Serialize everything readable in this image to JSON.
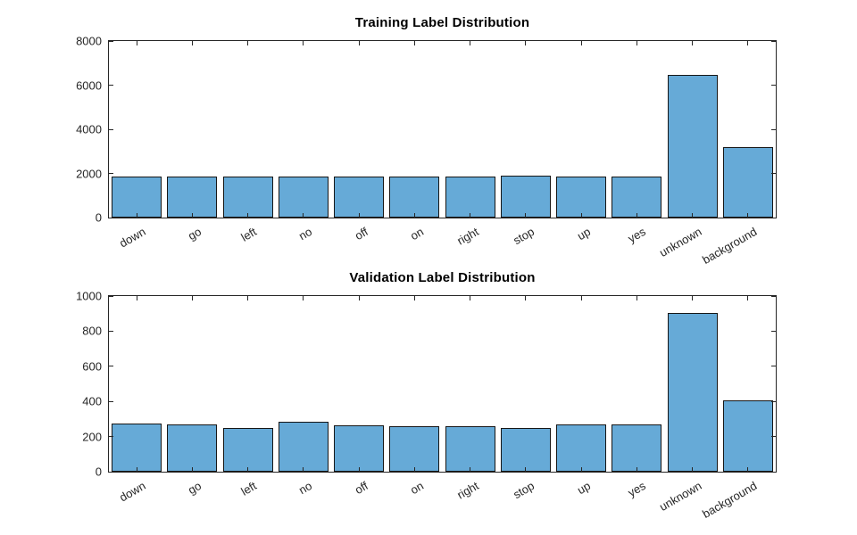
{
  "figure": {
    "background_color": "#ffffff",
    "axis_color": "#262626",
    "tick_label_color": "#262626",
    "title_color": "#000000",
    "bar_face_color": "#66aad7",
    "bar_edge_color": "#161616"
  },
  "chart_data": [
    {
      "type": "bar",
      "title": "Training Label Distribution",
      "categories": [
        "down",
        "go",
        "left",
        "no",
        "off",
        "on",
        "right",
        "stop",
        "up",
        "yes",
        "unknown",
        "background"
      ],
      "values": [
        1845,
        1860,
        1840,
        1855,
        1840,
        1865,
        1850,
        1900,
        1840,
        1865,
        6450,
        3200
      ],
      "xlabel": "",
      "ylabel": "",
      "ylim": [
        0,
        8000
      ],
      "yticks": [
        0,
        2000,
        4000,
        6000,
        8000
      ],
      "grid": false,
      "legend": null,
      "bar_width_fraction": 0.9,
      "x_label_rotation_deg": 30
    },
    {
      "type": "bar",
      "title": "Validation Label Distribution",
      "categories": [
        "down",
        "go",
        "left",
        "no",
        "off",
        "on",
        "right",
        "stop",
        "up",
        "yes",
        "unknown",
        "background"
      ],
      "values": [
        272,
        268,
        251,
        283,
        262,
        260,
        259,
        250,
        271,
        268,
        905,
        405
      ],
      "xlabel": "",
      "ylabel": "",
      "ylim": [
        0,
        1000
      ],
      "yticks": [
        0,
        200,
        400,
        600,
        800,
        1000
      ],
      "grid": false,
      "legend": null,
      "bar_width_fraction": 0.9,
      "x_label_rotation_deg": 30
    }
  ]
}
